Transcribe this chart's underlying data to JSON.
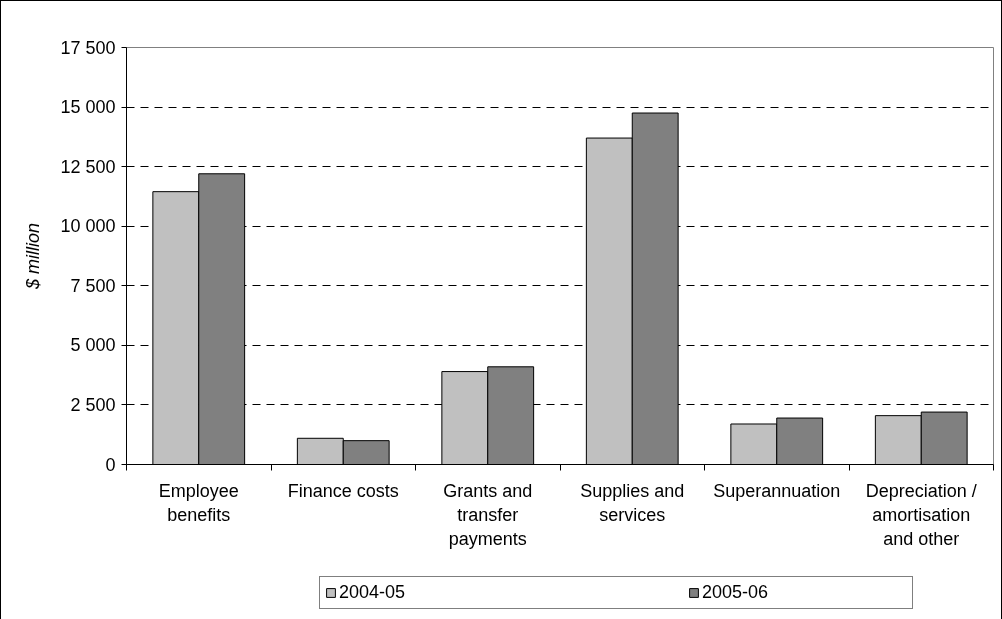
{
  "chart_data": {
    "type": "bar",
    "ylabel": "$ million",
    "categories": [
      "Employee benefits",
      "Finance costs",
      "Grants and transfer payments",
      "Supplies and services",
      "Superannuation",
      "Depreciation / amortisation and other"
    ],
    "series": [
      {
        "name": "2004-05",
        "color": "#c0c0c0",
        "values": [
          11450,
          1100,
          3900,
          13700,
          1700,
          2050
        ]
      },
      {
        "name": "2005-06",
        "color": "#808080",
        "values": [
          12200,
          1000,
          4100,
          14750,
          1950,
          2200
        ]
      }
    ],
    "ylim": [
      0,
      17500
    ],
    "yticks": [
      0,
      {
        "value": 2500,
        "label": "2 500"
      },
      {
        "value": 5000,
        "label": "5 000"
      },
      {
        "value": 7500,
        "label": "7 500"
      },
      {
        "value": 10000,
        "label": "10 000"
      },
      {
        "value": 12500,
        "label": "12 500"
      },
      {
        "value": 15000,
        "label": "15 000"
      },
      {
        "value": 17500,
        "label": "17 500"
      }
    ],
    "grid": "y",
    "legend": "bottom"
  }
}
